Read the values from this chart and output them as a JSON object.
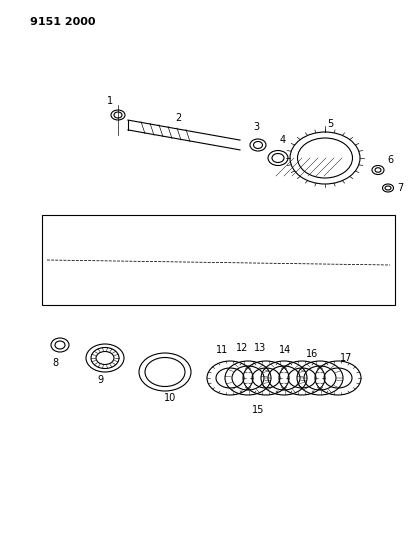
{
  "title": "9151 2000",
  "bg_color": "#ffffff",
  "line_color": "#000000",
  "part_numbers": [
    1,
    2,
    3,
    4,
    5,
    6,
    7,
    8,
    9,
    10,
    11,
    12,
    13,
    14,
    15,
    16,
    17
  ],
  "fig_width": 4.11,
  "fig_height": 5.33,
  "dpi": 100
}
